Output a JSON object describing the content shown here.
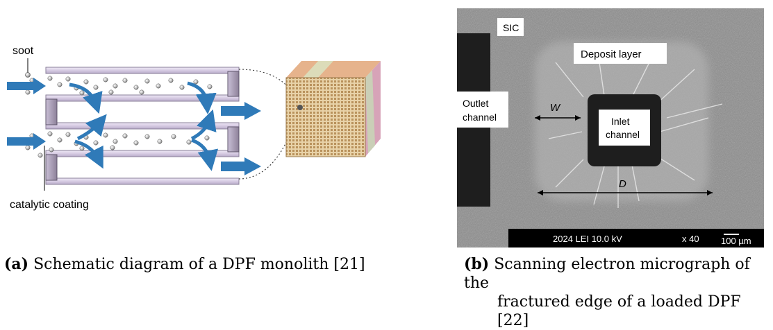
{
  "panel_a": {
    "label_soot": "soot",
    "label_coating": "catalytic coating",
    "caption_letter": "(a)",
    "caption_text": "Schematic diagram of a DPF monolith [21]"
  },
  "panel_b": {
    "label_sic": "SIC",
    "label_deposit": "Deposit layer",
    "label_outlet_1": "Outlet",
    "label_outlet_2": "channel",
    "label_inlet_1": "Inlet",
    "label_inlet_2": "channel",
    "label_w": "W",
    "label_d": "D",
    "sem_info": "2024 LEI  10.0 kV",
    "magnification": "x 40",
    "scale_bar": "100 µm",
    "caption_letter": "(b)",
    "caption_text_1": "Scanning electron micrograph of the",
    "caption_text_2": "fractured edge of a loaded DPF [22]"
  },
  "colors": {
    "arrow_blue": "#2f7ab8",
    "channel_lavender": "#d9cfe4",
    "channel_edge": "#8a7f99",
    "sem_bg": "#8d8d8d",
    "sem_dark": "#1e1e1e"
  }
}
